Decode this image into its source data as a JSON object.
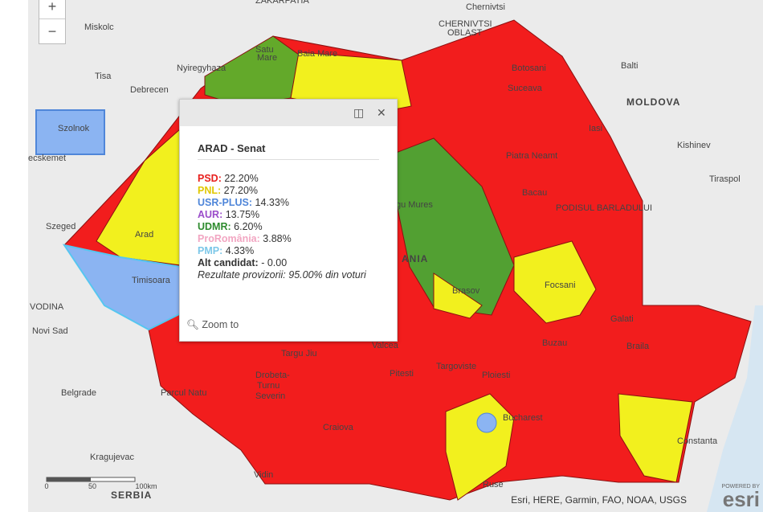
{
  "controls": {
    "zoom_in": "+",
    "zoom_out": "−"
  },
  "popup": {
    "title": "ARAD - Senat",
    "results": [
      {
        "party": "PSD:",
        "value": "22.20%",
        "color": "#e8201e"
      },
      {
        "party": "PNL:",
        "value": "27.20%",
        "color": "#e0c800"
      },
      {
        "party": "USR-PLUS:",
        "value": "14.33%",
        "color": "#4f86d9"
      },
      {
        "party": "AUR:",
        "value": "13.75%",
        "color": "#9b4dca"
      },
      {
        "party": "UDMR:",
        "value": "6.20%",
        "color": "#2e8b2e"
      },
      {
        "party": "ProRomânia:",
        "value": "3.88%",
        "color": "#f2a6c2"
      },
      {
        "party": "PMP:",
        "value": "4.33%",
        "color": "#7cc7e8"
      }
    ],
    "alt": {
      "label": "Alt candidat:",
      "value": " - 0.00"
    },
    "note": "Rezultate provizorii: 95.00% din voturi",
    "zoom": "Zoom to"
  },
  "labels": [
    "Miskolc",
    "Nyiregyhaza",
    "Debrecen",
    "Szolnok",
    "ecskemet",
    "Szeged",
    "VODINA",
    "Novi Sad",
    "Belgrade",
    "Kragujevac",
    "SERBIA",
    "MOLDOVA",
    "Kishinev",
    "Tiraspol",
    "Balti",
    "Chernivtsi",
    "CHERNIVTSI",
    "OBLAST",
    "ZAKARPATIA",
    "Satu",
    "Mare",
    "Baia Mare",
    "Botosani",
    "Suceava",
    "Iasi",
    "Piatra Neamt",
    "Bacau",
    "PODISUL BARLADULUI",
    "Focsani",
    "Galati",
    "Braila",
    "Buzau",
    "gu Mures",
    "Brasov",
    "Targu Jiu",
    "Valcea",
    "Pitesti",
    "Targoviste",
    "Ploiesti",
    "Drobeta-",
    "Turnu",
    "Severin",
    "Craiova",
    "Bucharest",
    "Constanta",
    "Ruse",
    "Vidin",
    "Arad",
    "Timisoara",
    "ANIA",
    "Tisa",
    "Parcul Natu"
  ],
  "scale": {
    "ticks": [
      "0",
      "50",
      "100km"
    ]
  },
  "attribution": "Esri, HERE, Garmin, FAO, NOAA, USGS",
  "logo": {
    "small": "POWERED BY",
    "big": "esri"
  }
}
